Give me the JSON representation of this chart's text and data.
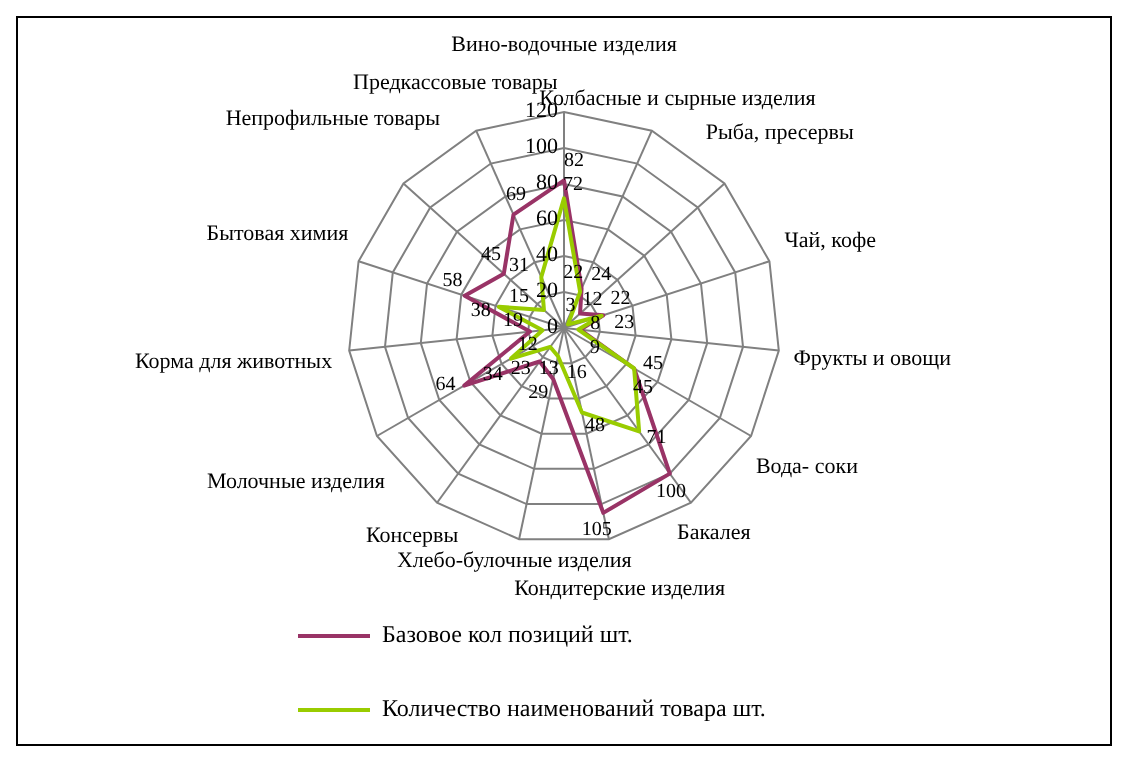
{
  "chart_data": {
    "type": "radar",
    "categories": [
      "Вино-водочные изделия",
      "Колбасные и сырные изделия",
      "Рыба, пресервы",
      "Чай, кофе",
      "Фрукты и овощи",
      "Вода- соки",
      "Бакалея",
      "Кондитерские изделия",
      "Хлебо-булочные изделия",
      "Консервы",
      "Молочные изделия",
      "Корма для животных",
      "Бытовая химия",
      "Непрофильные товары",
      "Предкассовые товары"
    ],
    "series": [
      {
        "name": "Базовое кол позиций шт.",
        "color": "#993366",
        "values": [
          82,
          24,
          12,
          23,
          9,
          45,
          100,
          105,
          29,
          23,
          64,
          19,
          58,
          45,
          69
        ]
      },
      {
        "name": "Количество наименований товара шт.",
        "color": "#99cc00",
        "values": [
          72,
          22,
          3,
          22,
          8,
          45,
          71,
          48,
          16,
          13,
          34,
          12,
          38,
          15,
          31
        ]
      }
    ],
    "ylim": [
      0,
      120
    ],
    "yticks": [
      0,
      20,
      40,
      60,
      80,
      100,
      120
    ],
    "grid": true,
    "legend": "bottom",
    "data_labels": true
  }
}
